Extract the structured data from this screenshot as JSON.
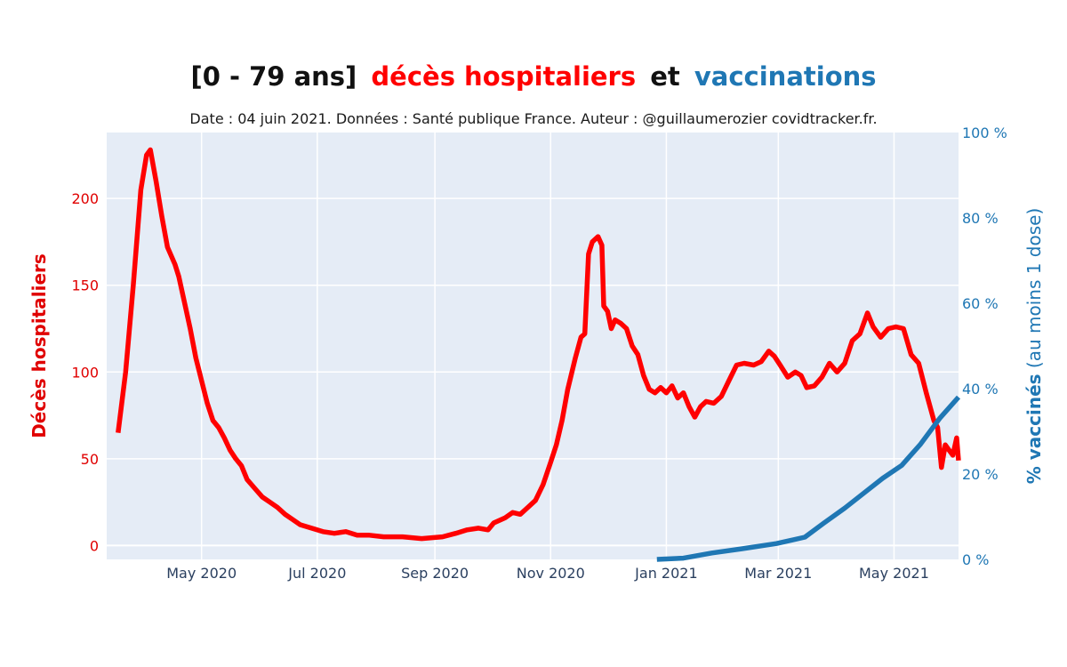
{
  "title": {
    "part1": "[0 - 79 ans]",
    "part2": "décès hospitaliers",
    "part3": "et",
    "part4": "vaccinations"
  },
  "subtitle": "Date : 04 juin 2021. Données : Santé publique France. Auteur : @guillaumerozier covidtracker.fr.",
  "colors": {
    "deces": "#ff0000",
    "vaccins": "#1f77b4",
    "plot_bg": "#e5ecf6",
    "grid": "#ffffff",
    "axis_text": "#2a3f5f"
  },
  "chart_data": {
    "type": "line",
    "title": "[0 - 79 ans] décès hospitaliers et vaccinations",
    "x_ticks": [
      {
        "date": "2020-05-01",
        "label": "May 2020"
      },
      {
        "date": "2020-07-01",
        "label": "Jul 2020"
      },
      {
        "date": "2020-09-01",
        "label": "Sep 2020"
      },
      {
        "date": "2020-11-01",
        "label": "Nov 2020"
      },
      {
        "date": "2021-01-01",
        "label": "Jan 2021"
      },
      {
        "date": "2021-03-01",
        "label": "Mar 2021"
      },
      {
        "date": "2021-05-01",
        "label": "May 2021"
      }
    ],
    "xlim": [
      "2020-03-12",
      "2021-06-04"
    ],
    "y_left": {
      "label": "Décès hospitaliers",
      "range": [
        -8,
        238
      ],
      "ticks": [
        0,
        50,
        100,
        150,
        200
      ]
    },
    "y_right": {
      "label_bold": "% vaccinés",
      "label_rest": " (au moins 1 dose)",
      "range": [
        0,
        100
      ],
      "ticks": [
        0,
        20,
        40,
        60,
        80,
        100
      ],
      "tick_suffix": " %"
    },
    "grid": true,
    "series": [
      {
        "axis": "left",
        "points": [
          [
            "2020-03-18",
            65
          ],
          [
            "2020-03-22",
            100
          ],
          [
            "2020-03-26",
            150
          ],
          [
            "2020-03-30",
            205
          ],
          [
            "2020-04-02",
            225
          ],
          [
            "2020-04-04",
            228
          ],
          [
            "2020-04-07",
            210
          ],
          [
            "2020-04-10",
            190
          ],
          [
            "2020-04-13",
            172
          ],
          [
            "2020-04-17",
            162
          ],
          [
            "2020-04-19",
            155
          ],
          [
            "2020-04-22",
            140
          ],
          [
            "2020-04-25",
            125
          ],
          [
            "2020-04-28",
            108
          ],
          [
            "2020-05-01",
            95
          ],
          [
            "2020-05-04",
            82
          ],
          [
            "2020-05-07",
            72
          ],
          [
            "2020-05-10",
            68
          ],
          [
            "2020-05-13",
            62
          ],
          [
            "2020-05-16",
            55
          ],
          [
            "2020-05-19",
            50
          ],
          [
            "2020-05-22",
            46
          ],
          [
            "2020-05-25",
            38
          ],
          [
            "2020-05-29",
            33
          ],
          [
            "2020-06-02",
            28
          ],
          [
            "2020-06-06",
            25
          ],
          [
            "2020-06-10",
            22
          ],
          [
            "2020-06-14",
            18
          ],
          [
            "2020-06-18",
            15
          ],
          [
            "2020-06-22",
            12
          ],
          [
            "2020-06-28",
            10
          ],
          [
            "2020-07-04",
            8
          ],
          [
            "2020-07-10",
            7
          ],
          [
            "2020-07-16",
            8
          ],
          [
            "2020-07-22",
            6
          ],
          [
            "2020-07-28",
            6
          ],
          [
            "2020-08-05",
            5
          ],
          [
            "2020-08-15",
            5
          ],
          [
            "2020-08-25",
            4
          ],
          [
            "2020-09-05",
            5
          ],
          [
            "2020-09-12",
            7
          ],
          [
            "2020-09-18",
            9
          ],
          [
            "2020-09-24",
            10
          ],
          [
            "2020-09-29",
            9
          ],
          [
            "2020-10-02",
            13
          ],
          [
            "2020-10-08",
            16
          ],
          [
            "2020-10-12",
            19
          ],
          [
            "2020-10-16",
            18
          ],
          [
            "2020-10-20",
            22
          ],
          [
            "2020-10-24",
            26
          ],
          [
            "2020-10-28",
            35
          ],
          [
            "2020-11-01",
            48
          ],
          [
            "2020-11-04",
            58
          ],
          [
            "2020-11-07",
            72
          ],
          [
            "2020-11-10",
            90
          ],
          [
            "2020-11-14",
            108
          ],
          [
            "2020-11-17",
            120
          ],
          [
            "2020-11-19",
            122
          ],
          [
            "2020-11-21",
            168
          ],
          [
            "2020-11-23",
            175
          ],
          [
            "2020-11-26",
            178
          ],
          [
            "2020-11-28",
            173
          ],
          [
            "2020-11-29",
            138
          ],
          [
            "2020-12-01",
            135
          ],
          [
            "2020-12-03",
            125
          ],
          [
            "2020-12-05",
            130
          ],
          [
            "2020-12-08",
            128
          ],
          [
            "2020-12-11",
            125
          ],
          [
            "2020-12-14",
            115
          ],
          [
            "2020-12-17",
            110
          ],
          [
            "2020-12-20",
            98
          ],
          [
            "2020-12-23",
            90
          ],
          [
            "2020-12-26",
            88
          ],
          [
            "2020-12-29",
            91
          ],
          [
            "2021-01-01",
            88
          ],
          [
            "2021-01-04",
            92
          ],
          [
            "2021-01-07",
            85
          ],
          [
            "2021-01-10",
            88
          ],
          [
            "2021-01-13",
            80
          ],
          [
            "2021-01-16",
            74
          ],
          [
            "2021-01-19",
            80
          ],
          [
            "2021-01-22",
            83
          ],
          [
            "2021-01-26",
            82
          ],
          [
            "2021-01-30",
            86
          ],
          [
            "2021-02-03",
            95
          ],
          [
            "2021-02-07",
            104
          ],
          [
            "2021-02-11",
            105
          ],
          [
            "2021-02-16",
            104
          ],
          [
            "2021-02-20",
            106
          ],
          [
            "2021-02-24",
            112
          ],
          [
            "2021-02-27",
            109
          ],
          [
            "2021-03-02",
            104
          ],
          [
            "2021-03-06",
            97
          ],
          [
            "2021-03-10",
            100
          ],
          [
            "2021-03-13",
            98
          ],
          [
            "2021-03-16",
            91
          ],
          [
            "2021-03-20",
            92
          ],
          [
            "2021-03-24",
            97
          ],
          [
            "2021-03-28",
            105
          ],
          [
            "2021-04-01",
            100
          ],
          [
            "2021-04-05",
            105
          ],
          [
            "2021-04-09",
            118
          ],
          [
            "2021-04-13",
            122
          ],
          [
            "2021-04-17",
            134
          ],
          [
            "2021-04-20",
            126
          ],
          [
            "2021-04-24",
            120
          ],
          [
            "2021-04-28",
            125
          ],
          [
            "2021-05-02",
            126
          ],
          [
            "2021-05-06",
            125
          ],
          [
            "2021-05-10",
            110
          ],
          [
            "2021-05-14",
            105
          ],
          [
            "2021-05-18",
            88
          ],
          [
            "2021-05-22",
            72
          ],
          [
            "2021-05-24",
            68
          ],
          [
            "2021-05-26",
            45
          ],
          [
            "2021-05-28",
            58
          ],
          [
            "2021-05-30",
            55
          ],
          [
            "2021-06-01",
            52
          ],
          [
            "2021-06-03",
            62
          ],
          [
            "2021-06-04",
            49
          ]
        ]
      },
      {
        "axis": "right",
        "points": [
          [
            "2020-12-27",
            0
          ],
          [
            "2021-01-10",
            0.3
          ],
          [
            "2021-01-25",
            1.5
          ],
          [
            "2021-02-10",
            2.5
          ],
          [
            "2021-02-28",
            3.7
          ],
          [
            "2021-03-15",
            5.2
          ],
          [
            "2021-03-25",
            8.5
          ],
          [
            "2021-04-05",
            12
          ],
          [
            "2021-04-15",
            15.5
          ],
          [
            "2021-04-25",
            19
          ],
          [
            "2021-05-05",
            22
          ],
          [
            "2021-05-15",
            27
          ],
          [
            "2021-05-25",
            33
          ],
          [
            "2021-06-04",
            38
          ]
        ]
      }
    ]
  }
}
